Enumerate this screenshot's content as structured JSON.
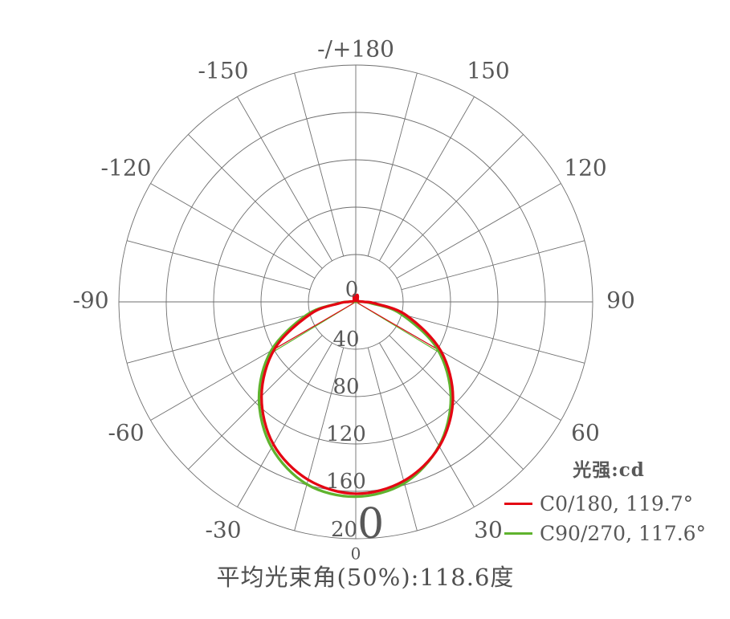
{
  "chart_data": {
    "type": "polar-line",
    "description": "luminous intensity distribution curve, 0 deg at bottom, intensity in cd",
    "units": "cd",
    "r_max": 200,
    "radial_ticks": [
      0,
      40,
      80,
      120,
      160,
      200
    ],
    "angle_grid_step_deg": 15,
    "angle_ticks": [
      {
        "deg": 180,
        "label": "-/+180"
      },
      {
        "deg": 150,
        "label": "150"
      },
      {
        "deg": 120,
        "label": "120"
      },
      {
        "deg": 90,
        "label": "90"
      },
      {
        "deg": 60,
        "label": "60"
      },
      {
        "deg": 30,
        "label": "30"
      },
      {
        "deg": 0,
        "label": "0"
      },
      {
        "deg": -30,
        "label": "-30"
      },
      {
        "deg": -60,
        "label": "-60"
      },
      {
        "deg": -90,
        "label": "-90"
      },
      {
        "deg": -120,
        "label": "-120"
      },
      {
        "deg": -150,
        "label": "-150"
      }
    ],
    "series": [
      {
        "name": "C90/270",
        "legend_label": "C90/270, 117.6°",
        "beam_angle_deg": 117.6,
        "color": "#5fb32e",
        "angles": [
          -100,
          -92,
          -85,
          -75,
          -60,
          -45,
          -30,
          -15,
          0,
          15,
          30,
          45,
          60,
          75,
          85,
          92,
          100
        ],
        "values": [
          0.5,
          4,
          15,
          43,
          82.5,
          115.5,
          142,
          159.5,
          164.5,
          158.5,
          140.5,
          113.5,
          79.5,
          39.5,
          13,
          3.5,
          0.5
        ]
      },
      {
        "name": "C0/180",
        "legend_label": "C0/180, 119.7°",
        "beam_angle_deg": 119.7,
        "color": "#e40613",
        "angles": [
          -180,
          -174,
          -168,
          -160,
          -148,
          -130,
          -110,
          -96,
          -90,
          -85,
          -75,
          -60,
          -45,
          -30,
          -15,
          0,
          15,
          30,
          45,
          60,
          75,
          85,
          90,
          96,
          110,
          130,
          148,
          160,
          168,
          174,
          180
        ],
        "values": [
          0.8,
          4.5,
          6,
          5,
          3,
          2,
          2,
          3.5,
          6,
          14,
          39.5,
          79,
          112.5,
          139,
          155.5,
          162,
          156.5,
          141,
          116,
          83,
          44.5,
          17,
          7,
          3.5,
          2,
          2,
          3,
          5,
          6,
          4.5,
          0.8
        ]
      }
    ],
    "legend": {
      "title": "光强:cd"
    },
    "footer": "平均光束角(50%):118.6度",
    "avg_beam_angle_50pct_deg": 118.6,
    "grid_color": "#6f6f6f",
    "text_color": "#585858"
  }
}
